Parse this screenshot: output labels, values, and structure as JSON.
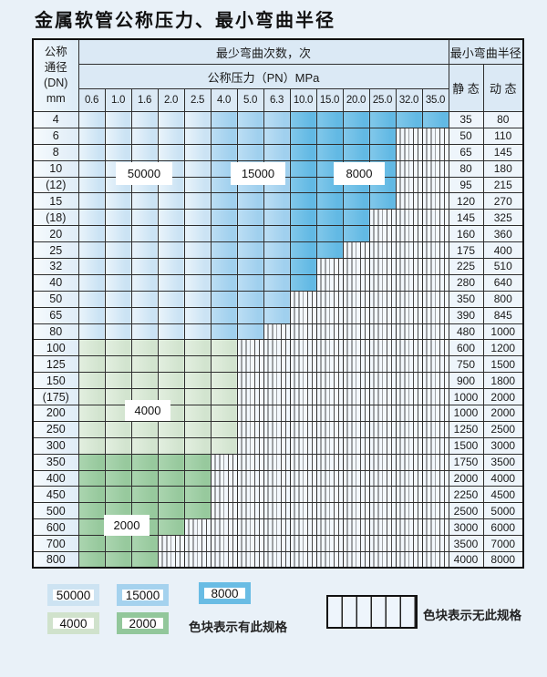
{
  "title": "金属软管公称压力、最小弯曲半径",
  "table": {
    "corner": [
      "公称",
      "通径",
      "(DN)",
      "mm"
    ],
    "top_header": "最少弯曲次数，次",
    "pressure_header": "公称压力（PN）MPa",
    "radius_header": "最小弯曲半径",
    "static_label": "静 态",
    "dynamic_label": "动 态",
    "pressure_columns": [
      "0.6",
      "1.0",
      "1.6",
      "2.0",
      "2.5",
      "4.0",
      "5.0",
      "6.3",
      "10.0",
      "15.0",
      "20.0",
      "25.0",
      "32.0",
      "35.0"
    ],
    "blue_zone_ranges": {
      "z50000": [
        1,
        5
      ],
      "z15000": [
        6,
        8
      ],
      "z8000": [
        9,
        14
      ]
    },
    "rows": [
      {
        "dn": "4",
        "colored_cols": 14,
        "zone": "blue",
        "static": "35",
        "dynamic": "80"
      },
      {
        "dn": "6",
        "colored_cols": 12,
        "zone": "blue",
        "static": "50",
        "dynamic": "110"
      },
      {
        "dn": "8",
        "colored_cols": 12,
        "zone": "blue",
        "static": "65",
        "dynamic": "145"
      },
      {
        "dn": "10",
        "colored_cols": 12,
        "zone": "blue",
        "static": "80",
        "dynamic": "180"
      },
      {
        "dn": "(12)",
        "colored_cols": 12,
        "zone": "blue",
        "static": "95",
        "dynamic": "215"
      },
      {
        "dn": "15",
        "colored_cols": 12,
        "zone": "blue",
        "static": "120",
        "dynamic": "270"
      },
      {
        "dn": "(18)",
        "colored_cols": 11,
        "zone": "blue",
        "static": "145",
        "dynamic": "325"
      },
      {
        "dn": "20",
        "colored_cols": 11,
        "zone": "blue",
        "static": "160",
        "dynamic": "360"
      },
      {
        "dn": "25",
        "colored_cols": 10,
        "zone": "blue",
        "static": "175",
        "dynamic": "400"
      },
      {
        "dn": "32",
        "colored_cols": 9,
        "zone": "blue",
        "static": "225",
        "dynamic": "510"
      },
      {
        "dn": "40",
        "colored_cols": 9,
        "zone": "blue",
        "static": "280",
        "dynamic": "640"
      },
      {
        "dn": "50",
        "colored_cols": 8,
        "zone": "blue",
        "static": "350",
        "dynamic": "800"
      },
      {
        "dn": "65",
        "colored_cols": 8,
        "zone": "blue",
        "static": "390",
        "dynamic": "845"
      },
      {
        "dn": "80",
        "colored_cols": 7,
        "zone": "blue",
        "static": "480",
        "dynamic": "1000"
      },
      {
        "dn": "100",
        "colored_cols": 6,
        "zone": "z4000",
        "static": "600",
        "dynamic": "1200"
      },
      {
        "dn": "125",
        "colored_cols": 6,
        "zone": "z4000",
        "static": "750",
        "dynamic": "1500"
      },
      {
        "dn": "150",
        "colored_cols": 6,
        "zone": "z4000",
        "static": "900",
        "dynamic": "1800"
      },
      {
        "dn": "(175)",
        "colored_cols": 6,
        "zone": "z4000",
        "static": "1000",
        "dynamic": "2000"
      },
      {
        "dn": "200",
        "colored_cols": 6,
        "zone": "z4000",
        "static": "1000",
        "dynamic": "2000"
      },
      {
        "dn": "250",
        "colored_cols": 6,
        "zone": "z4000",
        "static": "1250",
        "dynamic": "2500"
      },
      {
        "dn": "300",
        "colored_cols": 6,
        "zone": "z4000",
        "static": "1500",
        "dynamic": "3000"
      },
      {
        "dn": "350",
        "colored_cols": 5,
        "zone": "z2000",
        "static": "1750",
        "dynamic": "3500"
      },
      {
        "dn": "400",
        "colored_cols": 5,
        "zone": "z2000",
        "static": "2000",
        "dynamic": "4000"
      },
      {
        "dn": "450",
        "colored_cols": 5,
        "zone": "z2000",
        "static": "2250",
        "dynamic": "4500"
      },
      {
        "dn": "500",
        "colored_cols": 5,
        "zone": "z2000",
        "static": "2500",
        "dynamic": "5000"
      },
      {
        "dn": "600",
        "colored_cols": 4,
        "zone": "z2000",
        "static": "3000",
        "dynamic": "6000"
      },
      {
        "dn": "700",
        "colored_cols": 3,
        "zone": "z2000",
        "static": "3500",
        "dynamic": "7000"
      },
      {
        "dn": "800",
        "colored_cols": 3,
        "zone": "z2000",
        "static": "4000",
        "dynamic": "8000"
      }
    ]
  },
  "zone_labels": {
    "z50000": "50000",
    "z15000": "15000",
    "z8000": "8000",
    "z4000": "4000",
    "z2000": "2000"
  },
  "colors": {
    "z50000": [
      "#eaf4fb",
      "#cbe3f4"
    ],
    "z15000": [
      "#bcdef4",
      "#a0d0ee"
    ],
    "z8000": [
      "#82c8ea",
      "#62b9e4"
    ],
    "z4000": [
      "#e3efe0",
      "#d2e4cf"
    ],
    "z2000": [
      "#abd5b0",
      "#97c99d"
    ]
  },
  "legend": {
    "swatches": [
      {
        "value": "50000",
        "color": "#cde3f2"
      },
      {
        "value": "15000",
        "color": "#a5d2ee"
      },
      {
        "value": "8000",
        "color": "#69bce4"
      },
      {
        "value": "4000",
        "color": "#d0e2cc"
      },
      {
        "value": "2000",
        "color": "#92c79b"
      }
    ],
    "has_spec_note": "色块表示有此规格",
    "no_spec_note": "色块表示无此规格"
  }
}
